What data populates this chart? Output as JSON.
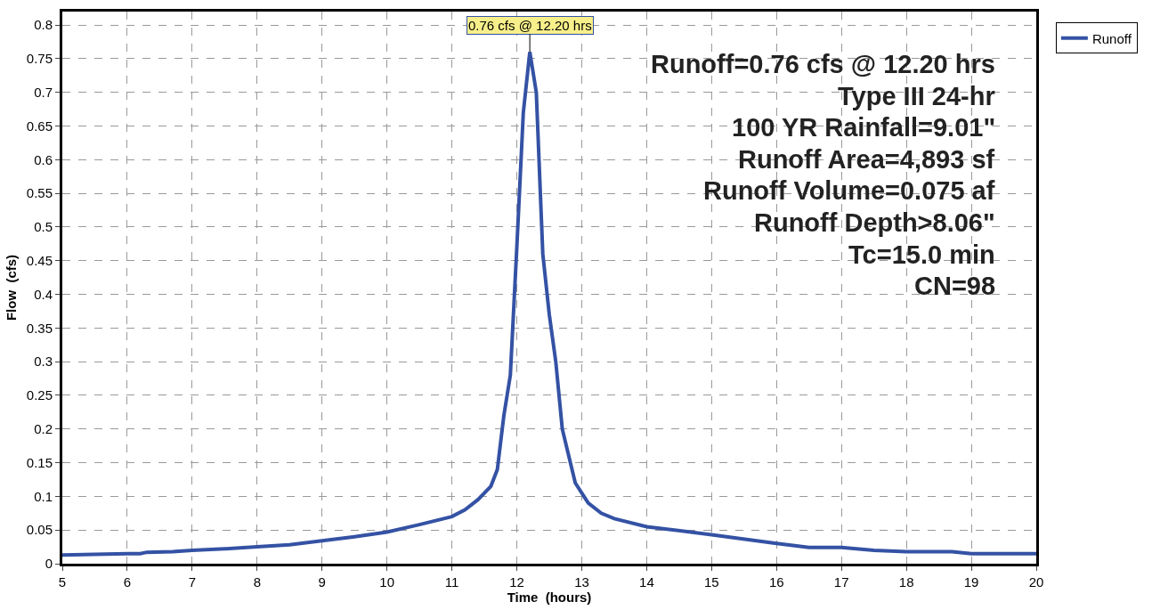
{
  "chart_data": {
    "type": "line",
    "xlabel": "Time  (hours)",
    "ylabel": "Flow  (cfs)",
    "x": [
      5,
      6,
      6.2,
      6.3,
      6.7,
      7,
      7.5,
      8,
      8.5,
      9,
      9.5,
      10,
      10.5,
      11,
      11.2,
      11.4,
      11.6,
      11.7,
      11.8,
      11.9,
      12.0,
      12.1,
      12.2,
      12.3,
      12.4,
      12.5,
      12.6,
      12.7,
      12.8,
      12.9,
      13.0,
      13.1,
      13.3,
      13.5,
      14,
      15,
      16,
      16.5,
      17,
      17.5,
      18,
      18.7,
      19,
      20
    ],
    "series": [
      {
        "name": "Runoff",
        "color": "#3452a4",
        "values": [
          0.013,
          0.015,
          0.015,
          0.017,
          0.018,
          0.02,
          0.022,
          0.025,
          0.028,
          0.034,
          0.04,
          0.047,
          0.058,
          0.07,
          0.08,
          0.095,
          0.115,
          0.14,
          0.22,
          0.28,
          0.47,
          0.67,
          0.76,
          0.7,
          0.46,
          0.37,
          0.3,
          0.2,
          0.16,
          0.12,
          0.105,
          0.09,
          0.075,
          0.067,
          0.055,
          0.043,
          0.03,
          0.024,
          0.024,
          0.02,
          0.018,
          0.018,
          0.015,
          0.015
        ]
      }
    ],
    "xlim": [
      5,
      20
    ],
    "xticks": [
      5,
      6,
      7,
      8,
      9,
      10,
      11,
      12,
      13,
      14,
      15,
      16,
      17,
      18,
      19,
      20
    ],
    "ylim": [
      0,
      0.82
    ],
    "yticks": [
      0,
      0.05,
      0.1,
      0.15,
      0.2,
      0.25,
      0.3,
      0.35,
      0.4,
      0.45,
      0.5,
      0.55,
      0.6,
      0.65,
      0.7,
      0.75,
      0.8
    ],
    "annotations": [
      {
        "text": "0.76 cfs @ 12.20 hrs",
        "x": 12.2,
        "y": 0.76
      },
      "Runoff=0.76 cfs @ 12.20 hrs",
      "Type III 24-hr",
      "100 YR Rainfall=9.01\"",
      "Runoff Area=4,893 sf",
      "Runoff Volume=0.075 af",
      "Runoff Depth>8.06\"",
      "Tc=15.0 min",
      "CN=98"
    ],
    "grid": true,
    "legend": "top right",
    "line_style": "solid",
    "marker": "none"
  }
}
